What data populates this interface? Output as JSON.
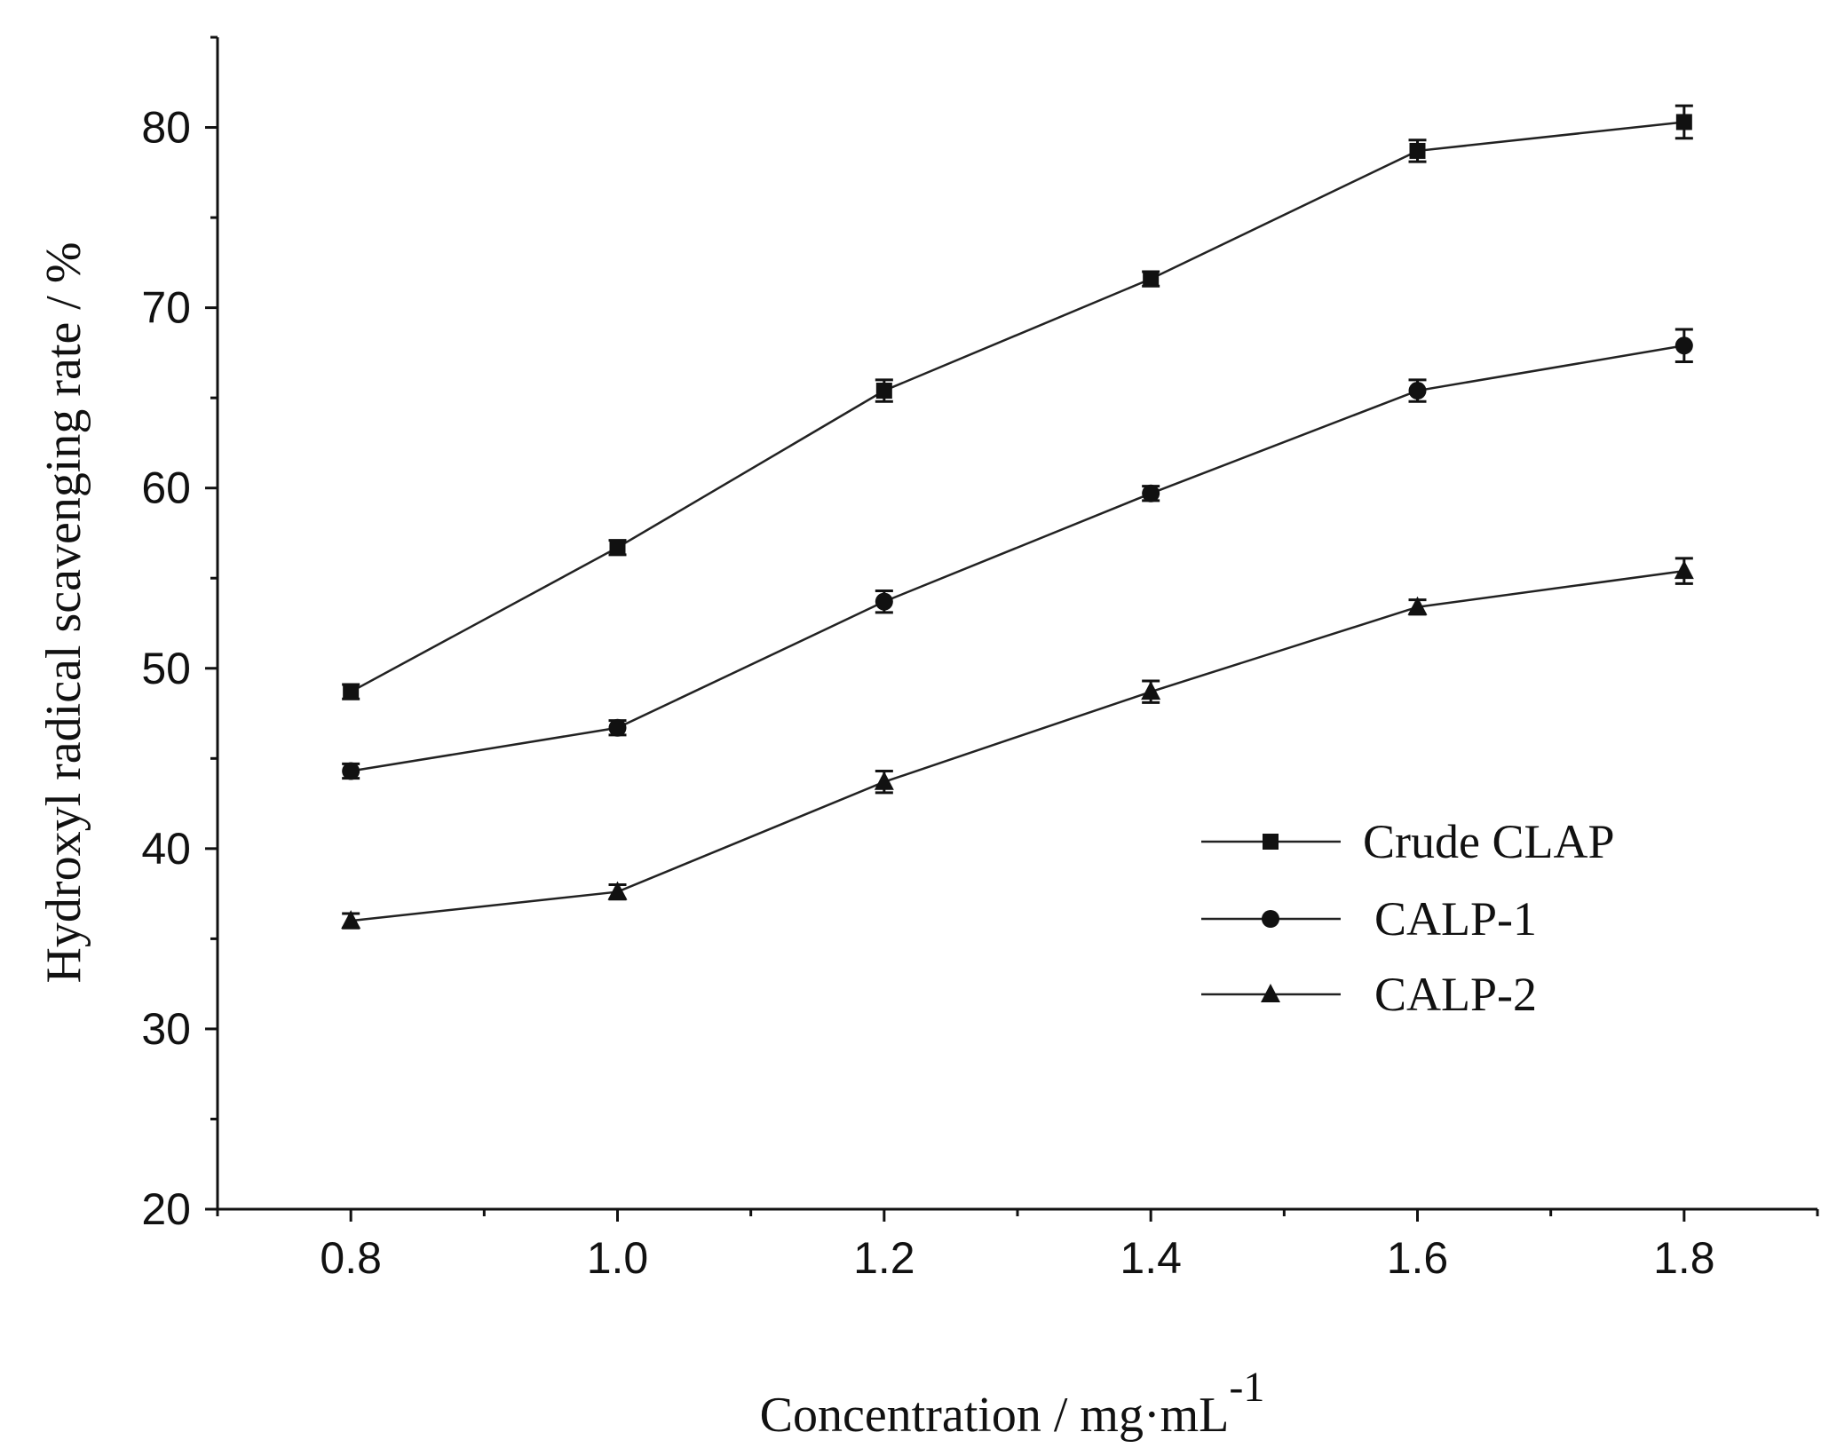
{
  "chart_data": {
    "type": "line",
    "title": "",
    "xlabel": "Concentration /  mg·mL",
    "xlabel_superscript": "-1",
    "ylabel": "Hydroxyl radical scavenging rate / %",
    "xlim": [
      0.7,
      1.9
    ],
    "ylim": [
      20,
      85
    ],
    "x": [
      0.8,
      1.0,
      1.2,
      1.4,
      1.6,
      1.8
    ],
    "x_tick_labels": [
      "0.8",
      "1.0",
      "1.2",
      "1.4",
      "1.6",
      "1.8"
    ],
    "y_ticks": [
      20,
      30,
      40,
      50,
      60,
      70,
      80
    ],
    "y_tick_labels": [
      "20",
      "30",
      "40",
      "50",
      "60",
      "70",
      "80"
    ],
    "grid": false,
    "legend_position": "center-right",
    "series": [
      {
        "name": "Crude CLAP",
        "marker": "square",
        "values": [
          48.7,
          56.7,
          65.4,
          71.6,
          78.7,
          80.3
        ],
        "errors": [
          0.4,
          0.4,
          0.6,
          0.4,
          0.6,
          0.9
        ]
      },
      {
        "name": "CALP-1",
        "marker": "circle",
        "values": [
          44.3,
          46.7,
          53.7,
          59.7,
          65.4,
          67.9
        ],
        "errors": [
          0.4,
          0.4,
          0.6,
          0.4,
          0.6,
          0.9
        ]
      },
      {
        "name": "CALP-2",
        "marker": "triangle",
        "values": [
          36.0,
          37.6,
          43.7,
          48.7,
          53.4,
          55.4
        ],
        "errors": [
          0.4,
          0.4,
          0.6,
          0.6,
          0.4,
          0.7
        ]
      }
    ]
  }
}
